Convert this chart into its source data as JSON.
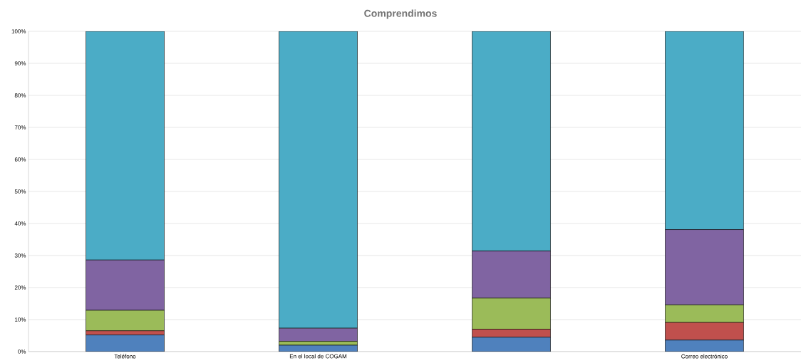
{
  "chart_data": {
    "type": "bar",
    "title": "Comprendimos",
    "stacked": true,
    "grid": "y",
    "categories": [
      "Teléfono",
      "En el local de COGAM",
      null,
      "Correo electrónico"
    ],
    "series": [
      {
        "color": "#4f81bd",
        "values": [
          5.2,
          2.0,
          4.5,
          3.6
        ]
      },
      {
        "color": "#c0504d",
        "values": [
          1.3,
          0,
          2.5,
          5.5
        ]
      },
      {
        "color": "#9bbb59",
        "values": [
          6.4,
          1.2,
          9.7,
          5.5
        ]
      },
      {
        "color": "#8064a2",
        "values": [
          15.7,
          4.1,
          14.7,
          23.5
        ]
      },
      {
        "color": "#4bacc6",
        "values": [
          71.4,
          92.7,
          68.6,
          61.9
        ]
      }
    ],
    "ylim": [
      0,
      100
    ],
    "yticks": [
      {
        "value": 0,
        "label": "0%"
      },
      {
        "value": 10,
        "label": "10%"
      },
      {
        "value": 20,
        "label": "20%"
      },
      {
        "value": 30,
        "label": "30%"
      },
      {
        "value": 40,
        "label": "40%"
      },
      {
        "value": 50,
        "label": "50%"
      },
      {
        "value": 60,
        "label": "60%"
      },
      {
        "value": 70,
        "label": "70%"
      },
      {
        "value": 80,
        "label": "80%"
      },
      {
        "value": 90,
        "label": "90%"
      },
      {
        "value": 100,
        "label": "100%"
      }
    ]
  }
}
